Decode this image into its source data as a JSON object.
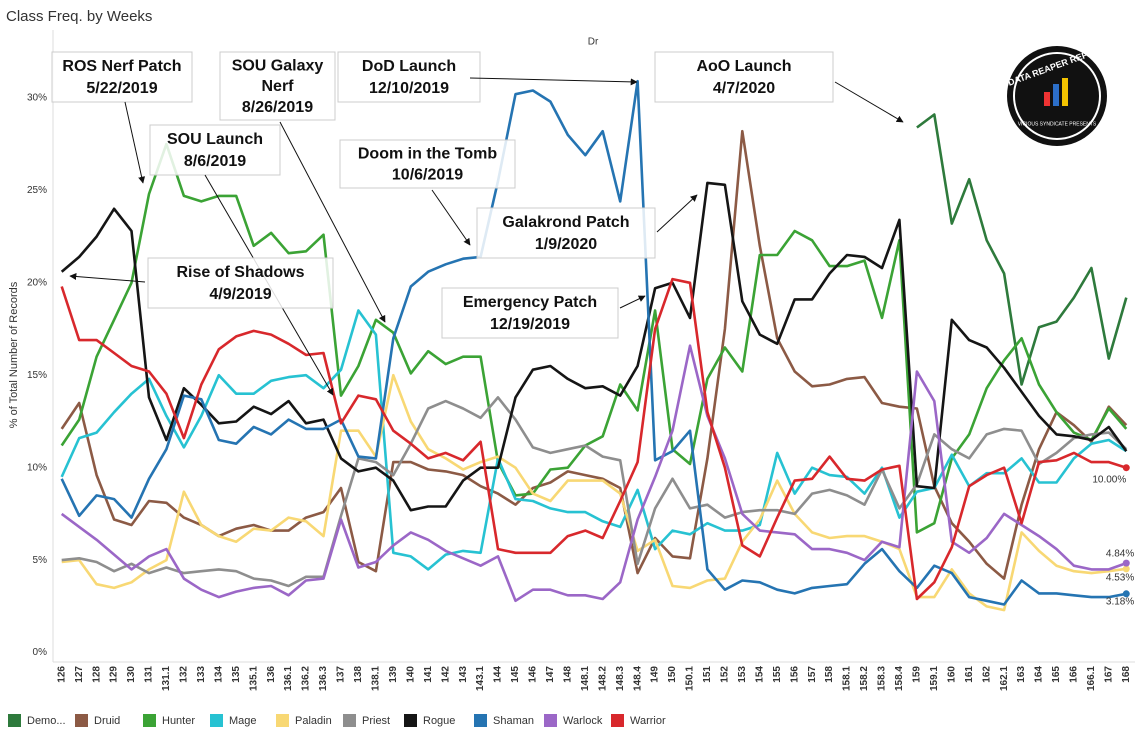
{
  "chart_data": {
    "type": "line",
    "title": "Class Freq. by Weeks",
    "subtitle": "Dr",
    "y_label": "% of Total Number of Records",
    "ylim": [
      -0.4,
      33.4
    ],
    "yticks": [
      {
        "value": 0,
        "label": "0%"
      },
      {
        "value": 5,
        "label": "5%"
      },
      {
        "value": 10,
        "label": "10%"
      },
      {
        "value": 15,
        "label": "15%"
      },
      {
        "value": 20,
        "label": "20%"
      },
      {
        "value": 25,
        "label": "25%"
      },
      {
        "value": 30,
        "label": "30%"
      }
    ],
    "grid": false,
    "legend": "bottom",
    "categories": [
      "126",
      "127",
      "128",
      "129",
      "130",
      "131",
      "131.1",
      "132",
      "133",
      "134",
      "135",
      "135.1",
      "136",
      "136.1",
      "136.2",
      "136.3",
      "137",
      "138",
      "138.1",
      "139",
      "140",
      "141",
      "142",
      "143",
      "143.1",
      "144",
      "145",
      "146",
      "147",
      "148",
      "148.1",
      "148.2",
      "148.3",
      "148.4",
      "149",
      "150",
      "150.1",
      "151",
      "152",
      "153",
      "154",
      "155",
      "156",
      "157",
      "158",
      "158.1",
      "158.2",
      "158.3",
      "158.4",
      "159",
      "159.1",
      "160",
      "161",
      "162",
      "162.1",
      "163",
      "164",
      "165",
      "166",
      "166.1",
      "167",
      "168"
    ],
    "series": [
      {
        "name": "Demo...",
        "color": "#2e7a3c",
        "values": [
          null,
          null,
          null,
          null,
          null,
          null,
          null,
          null,
          null,
          null,
          null,
          null,
          null,
          null,
          null,
          null,
          null,
          null,
          null,
          null,
          null,
          null,
          null,
          null,
          null,
          null,
          null,
          null,
          null,
          null,
          null,
          null,
          null,
          null,
          null,
          null,
          null,
          null,
          null,
          null,
          null,
          null,
          null,
          null,
          null,
          null,
          null,
          null,
          null,
          28.4,
          29.1,
          23.2,
          25.6,
          22.3,
          20.5,
          14.5,
          17.6,
          17.9,
          19.2,
          20.8,
          15.9,
          19.2
        ]
      },
      {
        "name": "Druid",
        "color": "#8c5a45",
        "values": [
          12.1,
          13.5,
          9.6,
          7.2,
          6.9,
          8.2,
          8.1,
          7.3,
          6.9,
          6.3,
          6.7,
          6.9,
          6.6,
          6.6,
          7.3,
          7.6,
          8.9,
          4.9,
          4.4,
          10.3,
          10.3,
          9.9,
          9.8,
          9.6,
          9.0,
          8.6,
          8.0,
          8.9,
          9.2,
          9.8,
          9.6,
          9.4,
          8.9,
          4.3,
          6.2,
          5.2,
          5.1,
          10.5,
          17.5,
          28.2,
          22.0,
          17.0,
          15.2,
          14.4,
          14.5,
          14.8,
          14.9,
          13.5,
          13.3,
          13.2,
          9.0,
          7.0,
          6.0,
          4.8,
          4.0,
          8.0,
          11.0,
          13.0,
          12.3,
          11.4,
          13.3,
          12.3
        ]
      },
      {
        "name": "Hunter",
        "color": "#3ba335",
        "values": [
          11.2,
          12.6,
          16.0,
          18.0,
          20.0,
          24.8,
          27.5,
          24.7,
          24.4,
          24.7,
          24.7,
          22.0,
          22.7,
          21.6,
          21.7,
          22.6,
          13.9,
          15.5,
          18.0,
          17.3,
          15.1,
          16.3,
          15.6,
          16.0,
          16.0,
          10.3,
          8.5,
          8.6,
          9.9,
          10.0,
          11.2,
          11.7,
          14.5,
          13.1,
          18.5,
          11.0,
          10.2,
          14.8,
          16.5,
          15.2,
          21.5,
          21.5,
          22.8,
          22.3,
          20.9,
          20.9,
          21.2,
          18.1,
          22.3,
          6.5,
          7.0,
          10.5,
          11.8,
          14.3,
          15.8,
          17.0,
          14.5,
          13.0,
          11.9,
          11.5,
          13.2,
          12.1
        ]
      },
      {
        "name": "Mage",
        "color": "#27c2d2",
        "values": [
          9.5,
          11.6,
          11.9,
          13.0,
          14.0,
          14.8,
          12.8,
          11.1,
          12.8,
          15.0,
          14.0,
          14.0,
          14.7,
          14.9,
          15.0,
          14.3,
          15.3,
          18.5,
          17.2,
          5.4,
          5.2,
          4.5,
          5.3,
          5.5,
          5.4,
          10.5,
          8.3,
          8.2,
          7.8,
          7.6,
          7.6,
          7.1,
          6.8,
          8.8,
          5.6,
          6.6,
          6.4,
          7.0,
          6.6,
          6.6,
          6.9,
          10.8,
          8.6,
          10.0,
          9.6,
          9.5,
          8.6,
          10.0,
          7.3,
          8.7,
          8.9,
          10.7,
          9.0,
          9.7,
          9.7,
          10.5,
          9.2,
          9.2,
          10.5,
          11.3,
          11.5,
          10.9
        ]
      },
      {
        "name": "Paladin",
        "color": "#f8d874",
        "values": [
          4.9,
          5.0,
          3.7,
          3.5,
          3.8,
          4.5,
          5.0,
          8.7,
          6.9,
          6.3,
          6.0,
          6.7,
          6.6,
          7.3,
          7.1,
          6.3,
          12.0,
          12.0,
          10.6,
          15.0,
          12.5,
          11.0,
          10.5,
          9.9,
          10.3,
          10.6,
          10.0,
          8.6,
          8.2,
          9.3,
          9.3,
          9.3,
          8.6,
          5.5,
          6.1,
          3.6,
          3.5,
          3.9,
          4.0,
          6.0,
          7.2,
          9.3,
          7.5,
          6.5,
          6.2,
          6.3,
          6.3,
          6.0,
          5.6,
          3.0,
          3.0,
          4.5,
          3.2,
          2.5,
          2.3,
          6.5,
          5.5,
          4.7,
          4.4,
          4.3,
          4.4,
          4.53
        ],
        "value_labels": [
          null,
          null,
          null,
          null,
          null,
          null,
          null,
          null,
          null,
          null,
          null,
          null,
          null,
          null,
          null,
          null,
          null,
          null,
          null,
          null,
          null,
          null,
          null,
          null,
          null,
          null,
          null,
          null,
          null,
          null,
          null,
          null,
          null,
          null,
          null,
          null,
          null,
          null,
          null,
          null,
          null,
          null,
          null,
          null,
          null,
          null,
          null,
          null,
          null,
          null,
          null,
          null,
          null,
          null,
          null,
          null,
          null,
          null,
          null,
          null,
          null,
          "4.53%"
        ]
      },
      {
        "name": "Priest",
        "color": "#8e8e8e",
        "values": [
          5.0,
          5.1,
          4.9,
          4.4,
          4.8,
          4.3,
          4.6,
          4.3,
          4.4,
          4.5,
          4.4,
          4.0,
          3.9,
          3.6,
          4.1,
          4.1,
          7.4,
          10.5,
          10.3,
          9.6,
          11.3,
          13.2,
          13.6,
          13.2,
          12.7,
          13.8,
          12.6,
          11.1,
          10.8,
          11.0,
          11.2,
          10.6,
          10.4,
          4.8,
          7.8,
          9.4,
          7.8,
          8.0,
          7.3,
          7.6,
          7.7,
          7.7,
          7.5,
          8.6,
          8.8,
          8.5,
          8.0,
          9.9,
          7.8,
          9.1,
          11.8,
          11.0,
          10.5,
          11.8,
          12.1,
          12.0,
          10.2,
          10.8,
          11.6,
          11.8,
          11.9,
          11.0
        ]
      },
      {
        "name": "Rogue",
        "color": "#151515",
        "values": [
          20.6,
          21.4,
          22.5,
          24.0,
          22.8,
          13.8,
          11.5,
          14.3,
          13.4,
          12.4,
          12.5,
          13.3,
          12.9,
          13.6,
          12.4,
          12.6,
          10.5,
          9.8,
          10.0,
          9.3,
          7.7,
          7.9,
          7.9,
          9.3,
          10.0,
          10.0,
          13.8,
          15.3,
          15.5,
          14.8,
          14.3,
          14.4,
          13.9,
          15.5,
          19.7,
          20.0,
          18.1,
          25.4,
          25.3,
          19.0,
          17.2,
          16.7,
          19.1,
          19.1,
          20.5,
          21.5,
          21.4,
          20.8,
          23.4,
          9.0,
          8.9,
          18.0,
          16.9,
          16.5,
          15.4,
          14.1,
          12.8,
          11.8,
          11.7,
          11.5,
          12.2,
          10.9
        ]
      },
      {
        "name": "Shaman",
        "color": "#2574b2",
        "values": [
          9.4,
          7.4,
          8.5,
          8.3,
          7.3,
          9.4,
          11.0,
          13.9,
          13.7,
          11.5,
          11.3,
          12.2,
          11.8,
          12.6,
          12.1,
          12.1,
          12.6,
          10.6,
          10.5,
          17.0,
          19.8,
          20.6,
          21.0,
          21.3,
          21.4,
          25.5,
          30.2,
          30.4,
          29.8,
          28.0,
          26.9,
          28.2,
          24.4,
          30.9,
          10.4,
          10.9,
          12.0,
          4.5,
          3.4,
          3.9,
          3.8,
          3.4,
          3.2,
          3.5,
          3.6,
          3.7,
          4.8,
          5.6,
          4.4,
          3.5,
          4.7,
          4.3,
          3.0,
          2.8,
          2.6,
          3.9,
          3.2,
          3.2,
          3.1,
          3.0,
          3.0,
          3.18
        ],
        "value_labels": [
          null,
          null,
          null,
          null,
          null,
          null,
          null,
          null,
          null,
          null,
          null,
          null,
          null,
          null,
          null,
          null,
          null,
          null,
          null,
          null,
          null,
          null,
          null,
          null,
          null,
          null,
          null,
          null,
          null,
          null,
          null,
          null,
          null,
          null,
          null,
          null,
          null,
          null,
          null,
          null,
          null,
          null,
          null,
          null,
          null,
          null,
          null,
          null,
          null,
          null,
          null,
          null,
          null,
          null,
          null,
          null,
          null,
          null,
          null,
          null,
          null,
          "3.18%"
        ]
      },
      {
        "name": "Warlock",
        "color": "#9b67c7",
        "values": [
          7.5,
          6.8,
          6.1,
          5.3,
          4.5,
          5.2,
          5.6,
          4.0,
          3.4,
          3.0,
          3.3,
          3.5,
          3.6,
          3.1,
          3.9,
          4.0,
          7.2,
          4.6,
          4.9,
          5.8,
          6.5,
          6.1,
          5.5,
          5.1,
          4.7,
          5.2,
          2.8,
          3.4,
          3.4,
          3.1,
          3.1,
          2.9,
          3.8,
          7.2,
          9.5,
          12.0,
          16.6,
          12.8,
          10.5,
          7.5,
          6.6,
          6.5,
          6.4,
          5.6,
          5.6,
          5.4,
          5.0,
          6.0,
          5.7,
          15.2,
          13.6,
          6.0,
          5.4,
          6.2,
          7.5,
          6.9,
          6.3,
          5.6,
          4.7,
          4.5,
          4.5,
          4.84
        ],
        "value_labels": [
          null,
          null,
          null,
          null,
          null,
          null,
          null,
          null,
          null,
          null,
          null,
          null,
          null,
          null,
          null,
          null,
          null,
          null,
          null,
          null,
          null,
          null,
          null,
          null,
          null,
          null,
          null,
          null,
          null,
          null,
          null,
          null,
          null,
          null,
          null,
          null,
          null,
          null,
          null,
          null,
          null,
          null,
          null,
          null,
          null,
          null,
          null,
          null,
          null,
          null,
          null,
          null,
          null,
          null,
          null,
          null,
          null,
          null,
          null,
          null,
          null,
          "4.84%"
        ]
      },
      {
        "name": "Warrior",
        "color": "#d8282c",
        "values": [
          19.8,
          16.9,
          16.9,
          16.2,
          15.5,
          15.2,
          14.0,
          11.6,
          14.5,
          16.4,
          17.1,
          17.4,
          17.2,
          16.7,
          16.1,
          16.2,
          12.4,
          13.9,
          13.7,
          12.0,
          11.3,
          10.5,
          10.8,
          10.4,
          11.4,
          5.6,
          5.4,
          5.4,
          5.4,
          6.3,
          6.6,
          6.2,
          8.2,
          10.3,
          17.5,
          20.2,
          20.0,
          13.0,
          10.0,
          5.8,
          5.2,
          7.3,
          9.3,
          9.4,
          10.6,
          9.4,
          9.3,
          9.9,
          10.1,
          2.9,
          3.8,
          5.7,
          9.0,
          9.6,
          10.0,
          7.0,
          10.3,
          10.4,
          10.8,
          10.3,
          10.3,
          10.0
        ],
        "value_labels": [
          null,
          null,
          null,
          null,
          null,
          null,
          null,
          null,
          null,
          null,
          null,
          null,
          null,
          null,
          null,
          null,
          null,
          null,
          null,
          null,
          null,
          null,
          null,
          null,
          null,
          null,
          null,
          null,
          null,
          null,
          null,
          null,
          null,
          null,
          null,
          null,
          null,
          null,
          null,
          null,
          null,
          null,
          null,
          null,
          null,
          null,
          null,
          null,
          null,
          null,
          null,
          null,
          null,
          null,
          null,
          null,
          null,
          null,
          null,
          null,
          null,
          "10.00%"
        ]
      }
    ],
    "annotations": [
      {
        "lines": [
          "ROS Nerf Patch",
          "5/22/2019"
        ]
      },
      {
        "lines": [
          "SOU Galaxy",
          "Nerf",
          "8/26/2019"
        ]
      },
      {
        "lines": [
          "DoD Launch",
          "12/10/2019"
        ]
      },
      {
        "lines": [
          "AoO Launch",
          "4/7/2020"
        ]
      },
      {
        "lines": [
          "SOU Launch",
          "8/6/2019"
        ]
      },
      {
        "lines": [
          "Doom in the Tomb",
          "10/6/2019"
        ]
      },
      {
        "lines": [
          "Galakrond Patch",
          "1/9/2020"
        ]
      },
      {
        "lines": [
          "Rise of Shadows",
          "4/9/2019"
        ]
      },
      {
        "lines": [
          "Emergency Patch",
          "12/19/2019"
        ]
      }
    ],
    "logo": {
      "title": "DATA REAPER REPORT",
      "subtitle": "VICIOUS SYNDICATE PRESENTS"
    }
  }
}
